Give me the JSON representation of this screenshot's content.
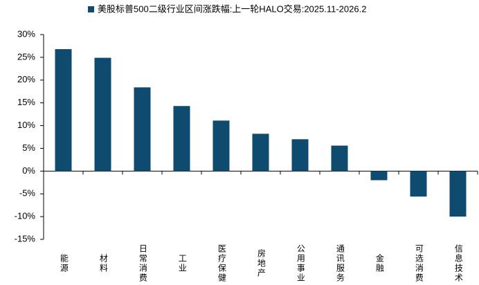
{
  "chart_data": {
    "type": "bar",
    "categories": [
      "能源",
      "材料",
      "日常消费",
      "工业",
      "医疗保健",
      "房地产",
      "公用事业",
      "通讯服务",
      "金融",
      "可选消费",
      "信息技术"
    ],
    "series": [
      {
        "name": "美股标普500二级行业区间涨跌幅:上一轮HALO交易:2025.11-2026.2",
        "color": "#0e4b6e",
        "values": [
          26.8,
          24.9,
          18.4,
          14.3,
          11.1,
          8.2,
          7.0,
          5.6,
          -2.0,
          -5.6,
          -10.0
        ]
      }
    ],
    "ylim": [
      -15,
      30
    ],
    "yticks": [
      {
        "value": -15,
        "label": "-15%"
      },
      {
        "value": -10,
        "label": "-10%"
      },
      {
        "value": -5,
        "label": "-5%"
      },
      {
        "value": 0,
        "label": "0%"
      },
      {
        "value": 5,
        "label": "5%"
      },
      {
        "value": 10,
        "label": "10%"
      },
      {
        "value": 15,
        "label": "15%"
      },
      {
        "value": 20,
        "label": "20%"
      },
      {
        "value": 25,
        "label": "25%"
      },
      {
        "value": 30,
        "label": "30%"
      }
    ],
    "legend": "top",
    "grid": false
  }
}
